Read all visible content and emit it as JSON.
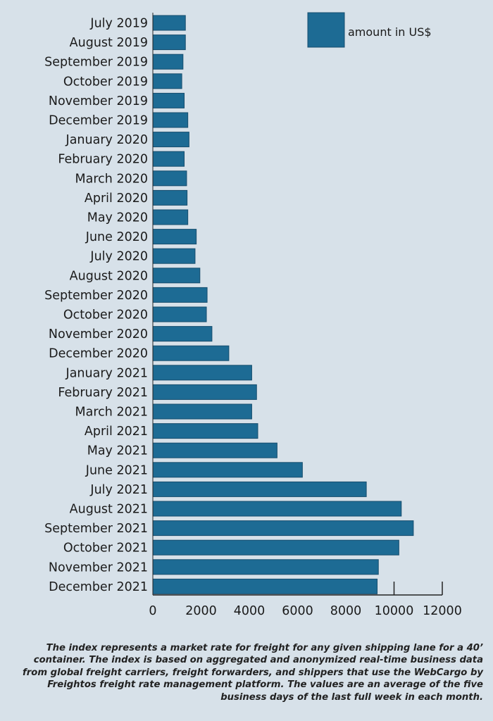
{
  "chart_data": {
    "type": "bar",
    "orientation": "horizontal",
    "categories": [
      "July 2019",
      "August 2019",
      "September 2019",
      "October 2019",
      "November 2019",
      "December 2019",
      "January 2020",
      "February 2020",
      "March 2020",
      "April 2020",
      "May 2020",
      "June 2020",
      "July 2020",
      "August 2020",
      "September 2020",
      "October 2020",
      "November 2020",
      "December 2020",
      "January 2021",
      "February 2021",
      "March 2021",
      "April 2021",
      "May 2021",
      "June 2021",
      "July 2021",
      "August 2021",
      "September 2021",
      "October 2021",
      "November 2021",
      "December 2021"
    ],
    "series": [
      {
        "name": "amount in US$",
        "values": [
          1350,
          1350,
          1250,
          1200,
          1300,
          1450,
          1500,
          1300,
          1400,
          1420,
          1450,
          1800,
          1750,
          1950,
          2250,
          2220,
          2450,
          3150,
          4100,
          4300,
          4100,
          4350,
          5150,
          6200,
          8850,
          10300,
          10800,
          10200,
          9350,
          9300
        ]
      }
    ],
    "xlim": [
      0,
      12000
    ],
    "x_ticks": [
      "0",
      "2000",
      "4000",
      "6000",
      "8000",
      "10000",
      "12000"
    ],
    "legend_position": "top-right",
    "grid": false,
    "colors": {
      "bar": "#1d6b94",
      "bar_border": "#174e6e",
      "axis": "#222222"
    }
  },
  "caption": "The index represents a market rate for freight for any given shipping lane for a 40’ container. The index is based on aggregated and anonymized real-time business data from global freight carriers, freight forwarders, and shippers that use the WebCargo by Freightos freight rate management platform. The values are an average of the five business days of the last full week in each month."
}
